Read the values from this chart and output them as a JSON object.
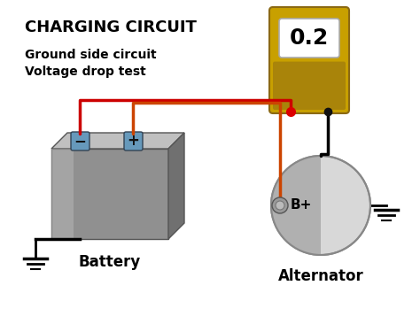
{
  "title": "CHARGING CIRCUIT",
  "subtitle_line1": "Ground side circuit",
  "subtitle_line2": "Voltage drop test",
  "meter_value": "0.2",
  "battery_label": "Battery",
  "alternator_label": "Alternator",
  "bplus_label": "B+",
  "bg_color": "#ffffff",
  "title_color": "#000000",
  "subtitle_color": "#000000",
  "meter_gold": "#c8a000",
  "meter_gold_dark": "#8B6914",
  "meter_display_color": "#ffffff",
  "wire_orange": "#cc4400",
  "wire_black": "#000000",
  "wire_red": "#cc0000",
  "terminal_color": "#6699bb",
  "terminal_border": "#334455",
  "battery_front": "#909090",
  "battery_top": "#c0c0c0",
  "battery_side": "#707070",
  "battery_highlight": "#b8b8b8",
  "alternator_light": "#d8d8d8",
  "alternator_dark": "#b0b0b0",
  "alternator_border": "#888888"
}
